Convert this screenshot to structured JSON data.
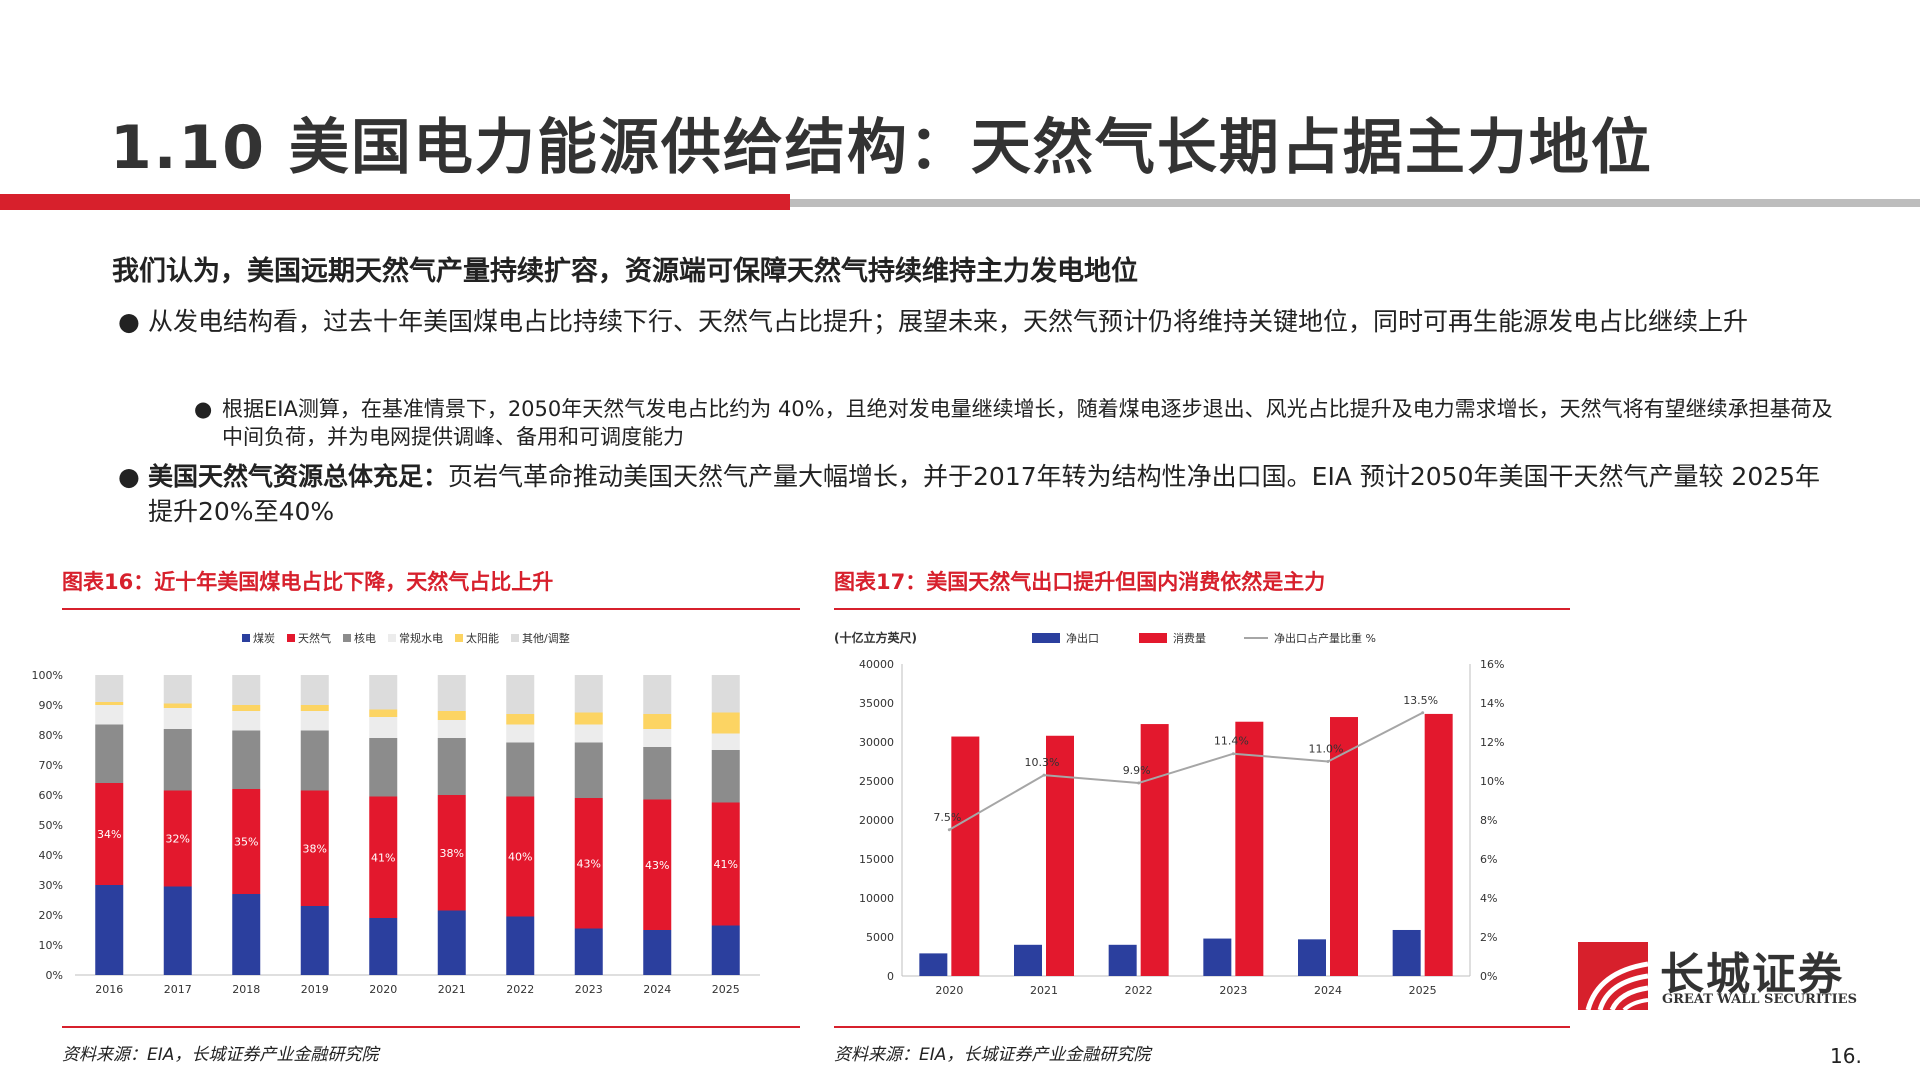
{
  "slide": {
    "title": "1.10 美国电力能源供给结构：天然气长期占据主力地位",
    "lead": "我们认为，美国远期天然气产量持续扩容，资源端可保障天然气持续维持主力发电地位",
    "bullets": [
      {
        "text": "从发电结构看，过去十年美国煤电占比持续下行、天然气占比提升；展望未来，天然气预计仍将维持关键地位，同时可再生能源发电占比继续上升"
      },
      {
        "text": "根据EIA测算，在基准情景下，2050年天然气发电占比约为 40%，且绝对发电量继续增长，随着煤电逐步退出、风光占比提升及电力需求增长，天然气将有望继续承担基荷及中间负荷，并为电网提供调峰、备用和可调度能力"
      },
      {
        "bold": "美国天然气资源总体充足：",
        "text": "页岩气革命推动美国天然气产量大幅增长，并于2017年转为结构性净出口国。EIA 预计2050年美国干天然气产量较 2025年提升20%至40%"
      }
    ],
    "bullet_symbol": "●",
    "page_number": "16.",
    "logo": {
      "cn": "长城证券",
      "en": "GREAT WALL SECURITIES"
    },
    "colors": {
      "accent": "#d7202c",
      "grey_bar": "#bdbdbd"
    }
  },
  "fig16": {
    "title": "图表16：近十年美国煤电占比下降，天然气占比上升",
    "source": "资料来源：EIA，长城证券产业金融研究院"
  },
  "fig17": {
    "title": "图表17：美国天然气出口提升但国内消费依然是主力",
    "source": "资料来源：EIA，长城证券产业金融研究院"
  },
  "chart_data": [
    {
      "type": "bar",
      "stacked": true,
      "categories": [
        "2016",
        "2017",
        "2018",
        "2019",
        "2020",
        "2021",
        "2022",
        "2023",
        "2024",
        "2025"
      ],
      "ylim": [
        0,
        100
      ],
      "yticks": [
        "0%",
        "10%",
        "20%",
        "30%",
        "40%",
        "50%",
        "60%",
        "70%",
        "80%",
        "90%",
        "100%"
      ],
      "legend_position": "top",
      "series": [
        {
          "name": "煤炭",
          "color": "#2b3f9e",
          "values": [
            30,
            29.5,
            27,
            23,
            19,
            21.5,
            19.5,
            15.5,
            15,
            16.5
          ]
        },
        {
          "name": "天然气",
          "color": "#e3182d",
          "values": [
            34,
            32,
            35,
            38.5,
            40.5,
            38.5,
            40,
            43.5,
            43.5,
            41
          ],
          "labels": [
            "34%",
            "32%",
            "35%",
            "38%",
            "41%",
            "38%",
            "40%",
            "43%",
            "43%",
            "41%"
          ]
        },
        {
          "name": "核电",
          "color": "#8c8c8c",
          "values": [
            19.5,
            20.5,
            19.5,
            20,
            19.5,
            19,
            18,
            18.5,
            17.5,
            17.5
          ]
        },
        {
          "name": "常规水电",
          "color": "#ececec",
          "values": [
            6.5,
            7,
            6.5,
            6.5,
            7,
            6,
            6,
            6,
            6,
            5.5
          ]
        },
        {
          "name": "太阳能",
          "color": "#fcd463",
          "values": [
            1,
            1.5,
            2,
            2,
            2.5,
            3,
            3.5,
            4,
            5,
            7
          ]
        },
        {
          "name": "其他/调整",
          "color": "#dcdcdc",
          "values": [
            9,
            9.5,
            10,
            10,
            11.5,
            12,
            13,
            12.5,
            13,
            12.5
          ]
        }
      ]
    },
    {
      "type": "bar",
      "categories": [
        "2020",
        "2021",
        "2022",
        "2023",
        "2024",
        "2025"
      ],
      "ylabel": "(十亿立方英尺)",
      "ylim": [
        0,
        40000
      ],
      "yticks": [
        "0",
        "5000",
        "10000",
        "15000",
        "20000",
        "25000",
        "30000",
        "35000",
        "40000"
      ],
      "y2lim": [
        0,
        16
      ],
      "y2ticks": [
        "0%",
        "2%",
        "4%",
        "6%",
        "8%",
        "10%",
        "12%",
        "14%",
        "16%"
      ],
      "legend_position": "top",
      "series": [
        {
          "name": "净出口",
          "type": "bar",
          "axis": "left",
          "color": "#2b3f9e",
          "values": [
            2900,
            4000,
            4000,
            4800,
            4700,
            5900
          ]
        },
        {
          "name": "消费量",
          "type": "bar",
          "axis": "left",
          "color": "#e3182d",
          "values": [
            30700,
            30800,
            32300,
            32600,
            33200,
            33600
          ]
        },
        {
          "name": "净出口占产量比重 %",
          "type": "line",
          "axis": "right",
          "color": "#a6a6a6",
          "values": [
            7.5,
            10.3,
            9.9,
            11.4,
            11.0,
            13.5
          ],
          "labels": [
            "7.5%",
            "10.3%",
            "9.9%",
            "11.4%",
            "11.0%",
            "13.5%"
          ]
        }
      ]
    }
  ]
}
